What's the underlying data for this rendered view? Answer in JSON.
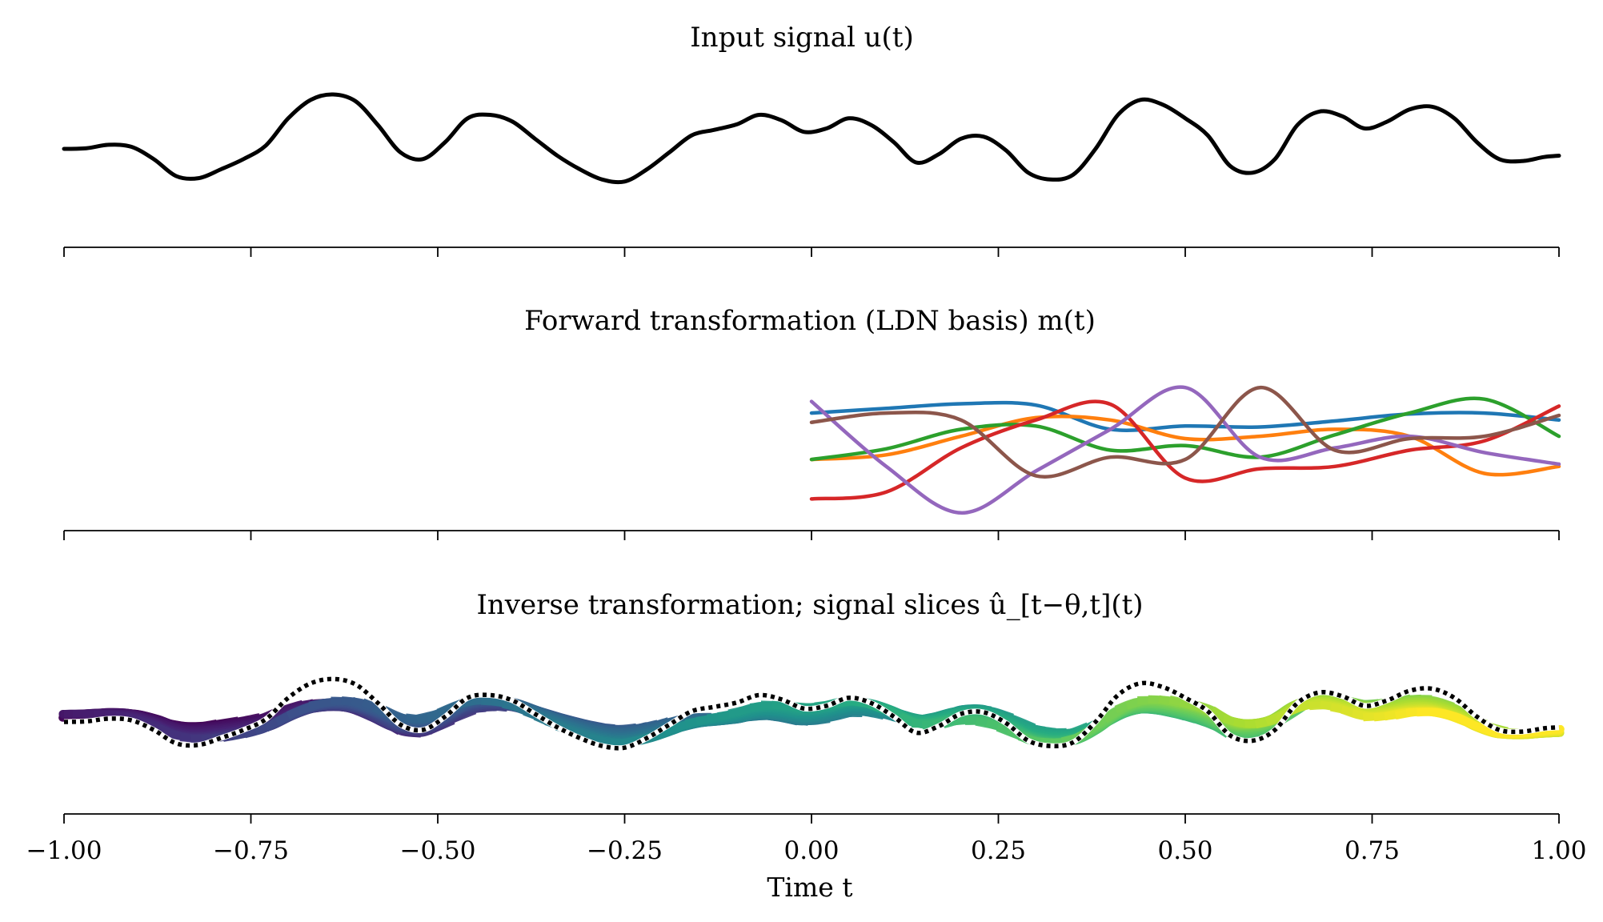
{
  "chart_data": {
    "type": "line",
    "xlim": [
      -1.0,
      1.0
    ],
    "xticks": [
      -1.0,
      -0.75,
      -0.5,
      -0.25,
      0.0,
      0.25,
      0.5,
      0.75,
      1.0
    ],
    "xtick_labels": [
      "−1.00",
      "−0.75",
      "−0.50",
      "−0.25",
      "0.00",
      "0.25",
      "0.50",
      "0.75",
      "1.00"
    ],
    "xlabel": "Time t",
    "grid": false,
    "panels": [
      {
        "title": "Input signal u(t)",
        "series": [
          {
            "color": "#000000",
            "x": [
              -1.0,
              -0.97,
              -0.94,
              -0.91,
              -0.88,
              -0.85,
              -0.82,
              -0.79,
              -0.76,
              -0.73,
              -0.7,
              -0.67,
              -0.64,
              -0.61,
              -0.58,
              -0.55,
              -0.52,
              -0.49,
              -0.46,
              -0.43,
              -0.4,
              -0.37,
              -0.34,
              -0.31,
              -0.28,
              -0.25,
              -0.22,
              -0.19,
              -0.16,
              -0.13,
              -0.1,
              -0.07,
              -0.04,
              -0.01,
              0.02,
              0.05,
              0.08,
              0.11,
              0.14,
              0.17,
              0.2,
              0.23,
              0.26,
              0.29,
              0.32,
              0.35,
              0.38,
              0.41,
              0.44,
              0.47,
              0.5,
              0.53,
              0.56,
              0.59,
              0.62,
              0.65,
              0.68,
              0.71,
              0.74,
              0.77,
              0.8,
              0.83,
              0.86,
              0.89,
              0.92,
              0.95,
              0.98,
              1.0
            ],
            "y": [
              0.0,
              0.01,
              0.06,
              0.03,
              -0.15,
              -0.4,
              -0.43,
              -0.3,
              -0.15,
              0.05,
              0.45,
              0.72,
              0.8,
              0.7,
              0.35,
              -0.05,
              -0.15,
              0.1,
              0.45,
              0.5,
              0.4,
              0.15,
              -0.1,
              -0.3,
              -0.45,
              -0.48,
              -0.3,
              -0.05,
              0.2,
              0.28,
              0.36,
              0.5,
              0.42,
              0.25,
              0.3,
              0.45,
              0.35,
              0.1,
              -0.2,
              -0.08,
              0.15,
              0.18,
              -0.02,
              -0.35,
              -0.45,
              -0.38,
              0.0,
              0.5,
              0.72,
              0.65,
              0.45,
              0.2,
              -0.25,
              -0.35,
              -0.15,
              0.35,
              0.55,
              0.48,
              0.3,
              0.4,
              0.58,
              0.62,
              0.45,
              0.1,
              -0.15,
              -0.18,
              -0.12,
              -0.1
            ]
          }
        ]
      },
      {
        "title": "Forward transformation (LDN basis) m(t)",
        "series": [
          {
            "color": "#1f77b4",
            "x": [
              0.0,
              0.1,
              0.2,
              0.3,
              0.4,
              0.5,
              0.6,
              0.7,
              0.8,
              0.9,
              1.0
            ],
            "y": [
              0.55,
              0.65,
              0.75,
              0.72,
              0.2,
              0.27,
              0.25,
              0.38,
              0.53,
              0.55,
              0.4
            ]
          },
          {
            "color": "#ff7f0e",
            "x": [
              0.0,
              0.1,
              0.2,
              0.3,
              0.4,
              0.5,
              0.6,
              0.7,
              0.8,
              0.9,
              1.0
            ],
            "y": [
              -0.45,
              -0.35,
              0.05,
              0.45,
              0.4,
              0.0,
              0.05,
              0.2,
              0.05,
              -0.75,
              -0.6
            ]
          },
          {
            "color": "#2ca02c",
            "x": [
              0.0,
              0.1,
              0.2,
              0.3,
              0.4,
              0.5,
              0.6,
              0.7,
              0.8,
              0.9,
              1.0
            ],
            "y": [
              -0.45,
              -0.22,
              0.2,
              0.27,
              -0.25,
              -0.15,
              -0.4,
              0.08,
              0.55,
              0.85,
              0.05
            ]
          },
          {
            "color": "#d62728",
            "x": [
              0.0,
              0.1,
              0.2,
              0.3,
              0.4,
              0.5,
              0.6,
              0.7,
              0.8,
              0.9,
              1.0
            ],
            "y": [
              -1.3,
              -1.15,
              -0.2,
              0.4,
              0.74,
              -0.85,
              -0.65,
              -0.6,
              -0.25,
              -0.05,
              0.7
            ]
          },
          {
            "color": "#9467bd",
            "x": [
              0.0,
              0.1,
              0.2,
              0.3,
              0.4,
              0.5,
              0.6,
              0.7,
              0.8,
              0.9,
              1.0
            ],
            "y": [
              0.8,
              -0.6,
              -1.6,
              -0.7,
              0.2,
              1.1,
              -0.4,
              -0.2,
              0.05,
              -0.3,
              -0.55
            ]
          },
          {
            "color": "#8c564b",
            "x": [
              0.0,
              0.1,
              0.2,
              0.3,
              0.4,
              0.5,
              0.6,
              0.7,
              0.8,
              0.9,
              1.0
            ],
            "y": [
              0.35,
              0.55,
              0.4,
              -0.8,
              -0.4,
              -0.45,
              1.1,
              -0.25,
              0.0,
              0.05,
              0.5
            ]
          }
        ]
      },
      {
        "title": "Inverse transformation; signal slices û_[t−θ,t](t)",
        "colormap": "viridis",
        "reference": {
          "color": "#000000",
          "style": "dotted",
          "note": "input signal u(t), same values as panel 1"
        }
      }
    ]
  }
}
